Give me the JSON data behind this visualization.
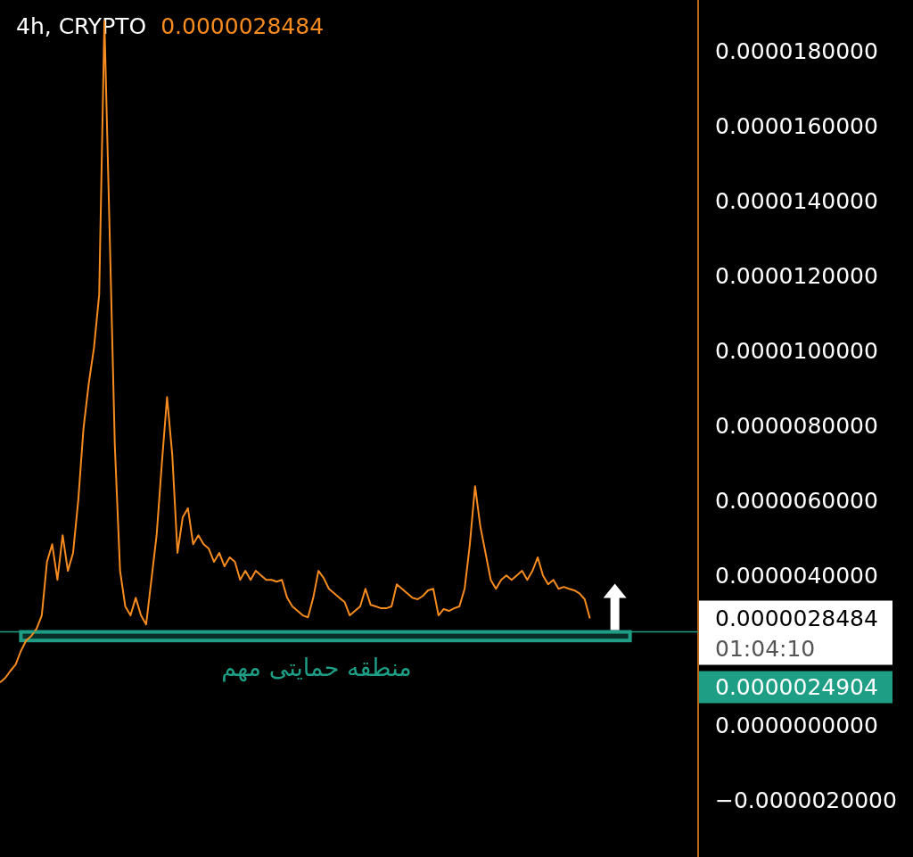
{
  "chart_data": {
    "type": "line",
    "title": "4h, CRYPTO",
    "subtitle": "0.0000028484",
    "categories": [
      null,
      null,
      null,
      null,
      null,
      null,
      null,
      null,
      null,
      null,
      null,
      null,
      null,
      null,
      null,
      null,
      null,
      null,
      null,
      null,
      null,
      null,
      null,
      null,
      null,
      null,
      null,
      null,
      null,
      null,
      null,
      null,
      null,
      null,
      null,
      null,
      null,
      null,
      null,
      null,
      null,
      null,
      null,
      null,
      null,
      null,
      null,
      null,
      null,
      null,
      null,
      null,
      null,
      null,
      null,
      null,
      null,
      null,
      null,
      null,
      null,
      null,
      null,
      null,
      null,
      null,
      null,
      null,
      null,
      null,
      null,
      null,
      null,
      null,
      null,
      null,
      null,
      null,
      null,
      null,
      null,
      null,
      null,
      null,
      null,
      null,
      null,
      null,
      null,
      null,
      null,
      null,
      null,
      null,
      null,
      null,
      null,
      null,
      null,
      null,
      null,
      null,
      null,
      null,
      null,
      null,
      null,
      null,
      null,
      null,
      null,
      null,
      null,
      null
    ],
    "series": [
      {
        "color": "#f68b1f",
        "values": [
          1.14e-06,
          1.26e-06,
          1.45e-06,
          1.62e-06,
          1.98e-06,
          2.26e-06,
          2.38e-06,
          2.57e-06,
          2.93e-06,
          4.36e-06,
          4.83e-06,
          3.88e-06,
          5.07e-06,
          4.12e-06,
          4.6e-06,
          6.02e-06,
          7.93e-06,
          9.12e-06,
          1.007e-05,
          1.15e-05,
          1.88e-05,
          1.317e-05,
          7.45e-06,
          4.12e-06,
          3.17e-06,
          2.93e-06,
          3.4e-06,
          2.93e-06,
          2.69e-06,
          3.88e-06,
          5.07e-06,
          6.98e-06,
          8.76e-06,
          7.21e-06,
          4.6e-06,
          5.55e-06,
          5.79e-06,
          4.83e-06,
          5.07e-06,
          4.83e-06,
          4.71e-06,
          4.36e-06,
          4.6e-06,
          4.24e-06,
          4.48e-06,
          4.36e-06,
          3.88e-06,
          4.12e-06,
          3.88e-06,
          4.12e-06,
          4e-06,
          3.88e-06,
          3.88e-06,
          3.83e-06,
          3.88e-06,
          3.4e-06,
          3.17e-06,
          3.05e-06,
          2.93e-06,
          2.88e-06,
          3.4e-06,
          4.12e-06,
          3.93e-06,
          3.64e-06,
          3.52e-06,
          3.4e-06,
          3.29e-06,
          2.93e-06,
          3.05e-06,
          3.17e-06,
          3.64e-06,
          3.21e-06,
          3.17e-06,
          3.12e-06,
          3.12e-06,
          3.17e-06,
          3.76e-06,
          3.64e-06,
          3.52e-06,
          3.4e-06,
          3.36e-06,
          3.45e-06,
          3.6e-06,
          3.64e-06,
          2.93e-06,
          3.1e-06,
          3.05e-06,
          3.12e-06,
          3.17e-06,
          3.64e-06,
          4.83e-06,
          6.38e-06,
          5.31e-06,
          4.6e-06,
          3.88e-06,
          3.64e-06,
          3.88e-06,
          4e-06,
          3.88e-06,
          4e-06,
          4.12e-06,
          3.88e-06,
          4.12e-06,
          4.48e-06,
          4e-06,
          3.76e-06,
          3.88e-06,
          3.64e-06,
          3.69e-06,
          3.64e-06,
          3.6e-06,
          3.52e-06,
          3.36e-06,
          2.8484e-06
        ]
      }
    ],
    "ylim": [
      -3.52e-06,
      1.936e-05
    ],
    "yticks": [
      {
        "value": -2e-06,
        "label": "−0.0000020000"
      },
      {
        "value": 0,
        "label": "0.0000000000"
      },
      {
        "value": 4e-06,
        "label": "0.0000040000"
      },
      {
        "value": 6e-06,
        "label": "0.0000060000"
      },
      {
        "value": 8e-06,
        "label": "0.0000080000"
      },
      {
        "value": 1e-05,
        "label": "0.0000100000"
      },
      {
        "value": 1.2e-05,
        "label": "0.0000120000"
      },
      {
        "value": 1.4e-05,
        "label": "0.0000140000"
      },
      {
        "value": 1.6e-05,
        "label": "0.0000160000"
      },
      {
        "value": 1.8e-05,
        "label": "0.0000180000"
      }
    ],
    "tick_labels": "y",
    "grid": false,
    "ref_lines": [
      {
        "axis": "y",
        "value": 2.4904e-06,
        "label": "0.0000024904",
        "color": "#1f9e86"
      }
    ],
    "bands": [
      {
        "axis": "y",
        "from": 2.26e-06,
        "to": 2.4904e-06,
        "label": "منطقه حمایتی مهم",
        "color": "#1f9e86"
      }
    ],
    "annotations": [
      "0.0000028484",
      "01:04:10"
    ]
  }
}
